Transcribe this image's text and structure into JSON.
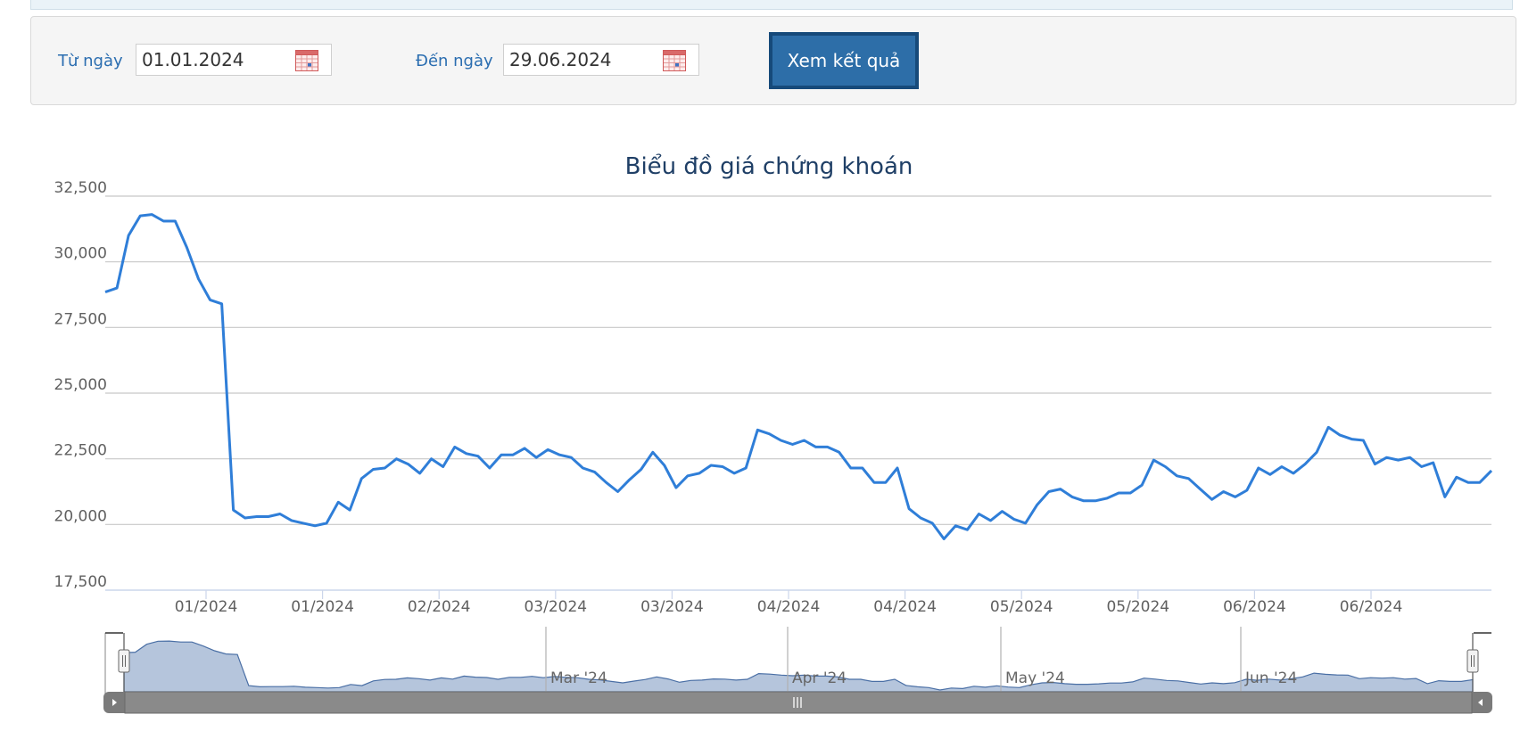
{
  "filter": {
    "from_label": "Từ ngày",
    "from_value": "01.01.2024",
    "to_label": "Đến ngày",
    "to_value": "29.06.2024",
    "submit_label": "Xem kết quả"
  },
  "chart_data": {
    "type": "line",
    "title": "Biểu đồ giá chứng khoán",
    "xlabel": "",
    "ylabel": "",
    "ylim": [
      17500,
      32500
    ],
    "yticks": [
      "17,500",
      "20,000",
      "22,500",
      "25,000",
      "27,500",
      "30,000",
      "32,500"
    ],
    "xtick_labels": [
      "01/2024",
      "01/2024",
      "02/2024",
      "03/2024",
      "03/2024",
      "04/2024",
      "04/2024",
      "05/2024",
      "05/2024",
      "06/2024",
      "06/2024"
    ],
    "grid": true,
    "legend": "none",
    "line_color": "#2f7ed8",
    "series": [
      {
        "values": [
          28850,
          29000,
          31000,
          31750,
          31800,
          31550,
          31550,
          30550,
          29350,
          28550,
          28400,
          20550,
          20250,
          20300,
          20300,
          20400,
          20150,
          20050,
          19950,
          20050,
          20850,
          20550,
          21750,
          22100,
          22150,
          22500,
          22300,
          21950,
          22500,
          22200,
          22950,
          22700,
          22600,
          22150,
          22650,
          22650,
          22900,
          22550,
          22850,
          22650,
          22550,
          22150,
          22000,
          21600,
          21250,
          21700,
          22100,
          22750,
          22250,
          21400,
          21850,
          21950,
          22250,
          22200,
          21950,
          22150,
          23600,
          23450,
          23200,
          23050,
          23200,
          22950,
          22950,
          22750,
          22150,
          22150,
          21600,
          21600,
          22150,
          20600,
          20250,
          20050,
          19450,
          19950,
          19800,
          20400,
          20150,
          20500,
          20200,
          20050,
          20750,
          21250,
          21350,
          21050,
          20900,
          20900,
          21000,
          21200,
          21200,
          21500,
          22450,
          22200,
          21850,
          21750,
          21350,
          20950,
          21250,
          21050,
          21300,
          22150,
          21900,
          22200,
          21950,
          22300,
          22750,
          23700,
          23400,
          23250,
          23200,
          22300,
          22550,
          22450,
          22550,
          22200,
          22350,
          21050,
          21800,
          21600,
          21600,
          22050
        ]
      }
    ],
    "navigator": {
      "labels": [
        "Mar '24",
        "Apr '24",
        "May '24",
        "Jun '24"
      ],
      "fill_color": "#b5c5dc",
      "line_color": "#4a6fa5"
    }
  }
}
